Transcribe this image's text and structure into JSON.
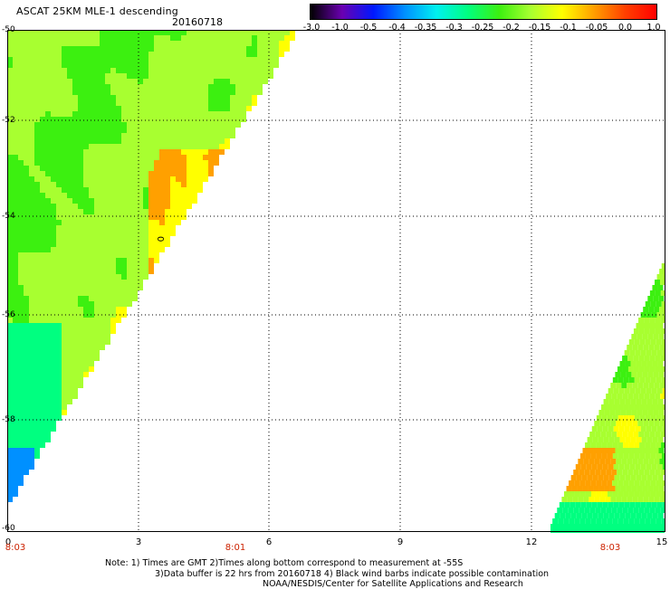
{
  "header": {
    "title": "ASCAT 25KM MLE-1 descending",
    "date": "20160718"
  },
  "colorbar": {
    "ticks": [
      "-3.0",
      "-1.0",
      "-0.5",
      "-0.4",
      "-0.35",
      "-0.3",
      "-0.25",
      "-0.2",
      "-0.15",
      "-0.1",
      "-0.05",
      "0.0",
      "1.0"
    ],
    "colors": [
      "#000000",
      "#6a00b0",
      "#0018ff",
      "#0090ff",
      "#00f0f0",
      "#00ff80",
      "#3cf010",
      "#a8ff30",
      "#ffff00",
      "#ffa000",
      "#ff4000",
      "#ff0000"
    ]
  },
  "axes": {
    "y_labels": [
      "-50",
      "-52",
      "-54",
      "-56",
      "-58",
      "-60"
    ],
    "x_labels": [
      "0",
      "3",
      "6",
      "9",
      "12",
      "15"
    ],
    "time_labels": [
      "8:03",
      "8:01",
      "8:03"
    ]
  },
  "map": {
    "marker": "0"
  },
  "notes": {
    "line1": "Note: 1) Times are GMT 2)Times along bottom correspond to measurement at -55S",
    "line2": "3)Data buffer is 22 hrs from 20160718 4) Black wind barbs indicate possible contamination",
    "line3": "NOAA/NESDIS/Center for Satellite Applications and Research"
  }
}
